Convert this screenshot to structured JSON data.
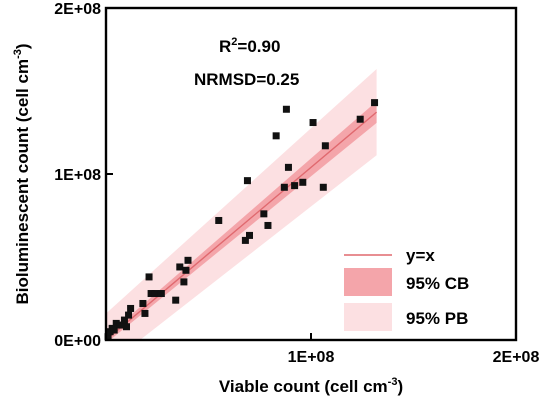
{
  "chart_data": {
    "type": "scatter",
    "xlabel_main": "Viable count (cell cm",
    "xlabel_sup": "-3",
    "xlabel_end": ")",
    "ylabel_main": "Bioluminescent count (cell cm",
    "ylabel_sup": "-3",
    "ylabel_end": ")",
    "xlim": [
      0,
      200000000
    ],
    "ylim": [
      0,
      200000000
    ],
    "xticks": [
      {
        "value": 100000000,
        "label": "1E+08"
      },
      {
        "value": 200000000,
        "label": "2E+08"
      }
    ],
    "yticks": [
      {
        "value": 0,
        "label": "0E+00"
      },
      {
        "value": 100000000,
        "label": "1E+08"
      },
      {
        "value": 200000000,
        "label": "2E+08"
      }
    ],
    "annotations": {
      "r2_prefix": "R",
      "r2_sup": "2",
      "r2_value": "=0.90",
      "nrmsd": "NRMSD=0.25"
    },
    "legend_position": "bottom-right",
    "legend": {
      "line": "y=x",
      "cb": "95% CB",
      "pb": "95% PB"
    },
    "colors": {
      "line": "#e0696f",
      "cb": "#f4a5aa",
      "pb": "#fce0e2",
      "points": "#111111"
    },
    "fit": {
      "x_range": [
        0,
        132000000
      ],
      "slope": 1.04,
      "intercept": 0,
      "cb_halfwidth_start": 2000000,
      "cb_halfwidth_end": 6500000,
      "pb_halfwidth_start": 16000000,
      "pb_halfwidth_end": 26000000
    },
    "points": [
      [
        1000000,
        2000000
      ],
      [
        2000000,
        5000000
      ],
      [
        3000000,
        7000000
      ],
      [
        4000000,
        6000000
      ],
      [
        5000000,
        10000000
      ],
      [
        7000000,
        9000000
      ],
      [
        9000000,
        12000000
      ],
      [
        10000000,
        8000000
      ],
      [
        11000000,
        15000000
      ],
      [
        12000000,
        19000000
      ],
      [
        18000000,
        22000000
      ],
      [
        19000000,
        16000000
      ],
      [
        21000000,
        38000000
      ],
      [
        22000000,
        28000000
      ],
      [
        24000000,
        28000000
      ],
      [
        27000000,
        28000000
      ],
      [
        34000000,
        24000000
      ],
      [
        36000000,
        44000000
      ],
      [
        38000000,
        35000000
      ],
      [
        39000000,
        42000000
      ],
      [
        40000000,
        48000000
      ],
      [
        55000000,
        72000000
      ],
      [
        68000000,
        60000000
      ],
      [
        69000000,
        96000000
      ],
      [
        70000000,
        63000000
      ],
      [
        77000000,
        76000000
      ],
      [
        79000000,
        69000000
      ],
      [
        83000000,
        123000000
      ],
      [
        87000000,
        92000000
      ],
      [
        88000000,
        139000000
      ],
      [
        89000000,
        104000000
      ],
      [
        92000000,
        93000000
      ],
      [
        96000000,
        95000000
      ],
      [
        101000000,
        131000000
      ],
      [
        106000000,
        92000000
      ],
      [
        107000000,
        117000000
      ],
      [
        124000000,
        133000000
      ],
      [
        131000000,
        143000000
      ]
    ]
  }
}
